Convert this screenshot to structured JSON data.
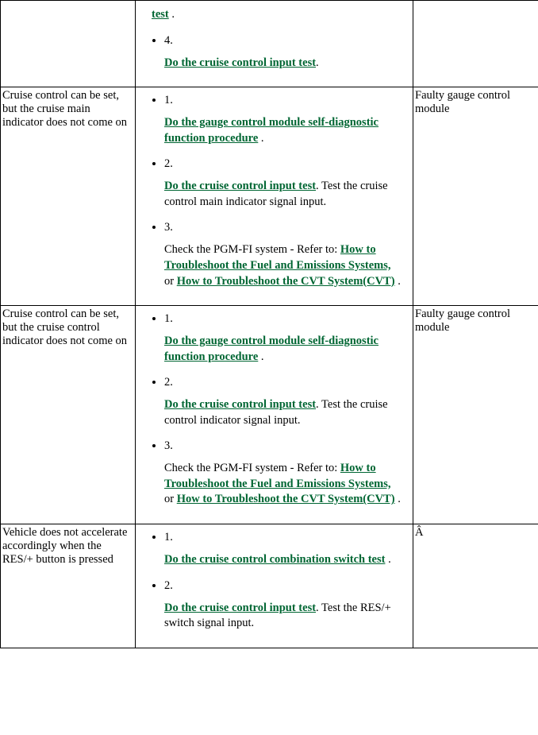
{
  "link_color": "#006633",
  "rows": [
    {
      "symptom": "",
      "cause": "",
      "steps": [
        {
          "num": "",
          "parts": [
            {
              "type": "link",
              "text": "test"
            },
            {
              "type": "text",
              "text": " ."
            }
          ]
        },
        {
          "num": "4.",
          "parts": [
            {
              "type": "link",
              "text": "Do the cruise control input test"
            },
            {
              "type": "text",
              "text": "."
            }
          ]
        }
      ]
    },
    {
      "symptom": "Cruise control can be set, but the cruise main indicator does not come on",
      "cause": "Faulty gauge control module",
      "steps": [
        {
          "num": "1.",
          "parts": [
            {
              "type": "link",
              "text": "Do the gauge control module self-diagnostic function procedure"
            },
            {
              "type": "text",
              "text": " ."
            }
          ]
        },
        {
          "num": "2.",
          "parts": [
            {
              "type": "link",
              "text": "Do the cruise control input test"
            },
            {
              "type": "text",
              "text": ". Test the cruise control main indicator signal input."
            }
          ]
        },
        {
          "num": "3.",
          "parts": [
            {
              "type": "text",
              "text": "Check the PGM-FI system - Refer to: "
            },
            {
              "type": "link",
              "text": "How to Troubleshoot the Fuel and Emissions Systems,"
            },
            {
              "type": "text",
              "text": " or "
            },
            {
              "type": "link",
              "text": "How to Troubleshoot the CVT System(CVT)"
            },
            {
              "type": "text",
              "text": " ."
            }
          ]
        }
      ]
    },
    {
      "symptom": "Cruise control can be set, but the cruise control indicator does not come on",
      "cause": "Faulty gauge control module",
      "steps": [
        {
          "num": "1.",
          "parts": [
            {
              "type": "link",
              "text": "Do the gauge control module self-diagnostic function procedure"
            },
            {
              "type": "text",
              "text": " ."
            }
          ]
        },
        {
          "num": "2.",
          "parts": [
            {
              "type": "link",
              "text": "Do the cruise control input test"
            },
            {
              "type": "text",
              "text": ". Test the cruise control indicator signal input."
            }
          ]
        },
        {
          "num": "3.",
          "parts": [
            {
              "type": "text",
              "text": "Check the PGM-FI system - Refer to: "
            },
            {
              "type": "link",
              "text": "How to Troubleshoot the Fuel and Emissions Systems,"
            },
            {
              "type": "text",
              "text": " or "
            },
            {
              "type": "link",
              "text": "How to Troubleshoot the CVT System(CVT)"
            },
            {
              "type": "text",
              "text": " ."
            }
          ]
        }
      ]
    },
    {
      "symptom": "Vehicle does not accelerate accordingly when the RES/+ button is pressed",
      "cause": "Â",
      "steps": [
        {
          "num": "1.",
          "parts": [
            {
              "type": "link",
              "text": "Do the cruise control combination switch test"
            },
            {
              "type": "text",
              "text": " ."
            }
          ]
        },
        {
          "num": "2.",
          "parts": [
            {
              "type": "link",
              "text": "Do the cruise control input test"
            },
            {
              "type": "text",
              "text": ". Test the RES/+ switch signal input."
            }
          ]
        }
      ]
    }
  ]
}
